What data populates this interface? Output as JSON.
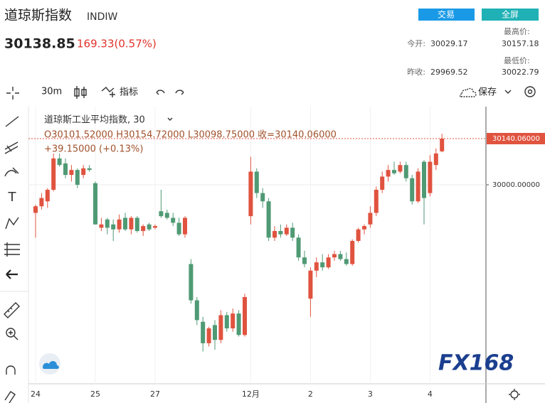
{
  "header": {
    "title": "道琼斯指数",
    "symbol": "INDIW",
    "price": "30138.85",
    "change": "169.33(0.57%)",
    "buttons": [
      "交易",
      "全屏"
    ],
    "stats": [
      {
        "label": "今开:",
        "value": "30029.17"
      },
      {
        "label": "最高价:",
        "value": "30157.18"
      },
      {
        "label": "昨收:",
        "value": "29969.52"
      },
      {
        "label": "最低价:",
        "value": "30022.79"
      }
    ]
  },
  "toolbar": {
    "interval": "30m",
    "indicators": "指标",
    "save": "保存"
  },
  "logo": "FX168",
  "chart_data": {
    "type": "candlestick",
    "legend_title": "道琼斯工业平均指数, 30",
    "ohlc_text": "O30101.52000  H30154.72000  L30098.75000  收=30140.06000",
    "change_text": "+39.15000 (+0.13%)",
    "categories": [
      "24",
      null,
      null,
      null,
      null,
      null,
      null,
      null,
      null,
      null,
      "25",
      null,
      null,
      null,
      null,
      null,
      null,
      null,
      null,
      null,
      "27",
      null,
      null,
      null,
      null,
      null,
      null,
      null,
      null,
      null,
      null,
      null,
      null,
      null,
      null,
      null,
      "12月",
      null,
      null,
      null,
      null,
      null,
      null,
      null,
      null,
      null,
      "2",
      null,
      null,
      null,
      null,
      null,
      null,
      null,
      null,
      null,
      "3",
      null,
      null,
      null,
      null,
      null,
      null,
      null,
      null,
      null,
      "4",
      null,
      null
    ],
    "open": [
      29915,
      29935,
      29950,
      29985,
      30080,
      30065,
      30030,
      30045,
      30030,
      30050,
      30005,
      29870,
      29895,
      29880,
      29865,
      29900,
      29865,
      29900,
      29860,
      29880,
      29870,
      29920,
      29915,
      29900,
      29885,
      29850,
      29760,
      29650,
      29585,
      29520,
      29575,
      29530,
      29605,
      29565,
      29610,
      29545,
      29905,
      30040,
      29975,
      29950,
      29840,
      29860,
      29850,
      29870,
      29840,
      29780,
      29655,
      29740,
      29765,
      29750,
      29780,
      29790,
      29775,
      29760,
      29830,
      29865,
      29880,
      29915,
      29985,
      30025,
      30045,
      30040,
      30060,
      30020,
      29950,
      30070,
      29975,
      30060,
      30101.52
    ],
    "high": [
      29940,
      29975,
      29990,
      30095,
      30095,
      30080,
      30060,
      30050,
      30060,
      30060,
      30010,
      29900,
      29900,
      29895,
      29910,
      29915,
      29905,
      29905,
      29880,
      29885,
      29880,
      29985,
      29925,
      29915,
      29900,
      29905,
      29775,
      29660,
      29600,
      29570,
      29590,
      29620,
      29615,
      29625,
      29620,
      29670,
      30085,
      30050,
      29990,
      29960,
      29875,
      29880,
      29880,
      29885,
      29850,
      29800,
      29750,
      29780,
      29790,
      29790,
      29800,
      29800,
      29795,
      29835,
      29870,
      29880,
      29935,
      29995,
      30040,
      30060,
      30070,
      30070,
      30070,
      30030,
      30050,
      30075,
      30090,
      30110,
      30154.72
    ],
    "low": [
      29840,
      29925,
      29930,
      29980,
      30055,
      30020,
      30010,
      29990,
      30020,
      30040,
      29880,
      29860,
      29850,
      29830,
      29855,
      29860,
      29850,
      29855,
      29845,
      29860,
      29865,
      29900,
      29895,
      29875,
      29845,
      29840,
      29640,
      29575,
      29495,
      29510,
      29500,
      29520,
      29555,
      29555,
      29540,
      29540,
      29880,
      29960,
      29930,
      29830,
      29830,
      29840,
      29845,
      29830,
      29770,
      29750,
      29600,
      29720,
      29740,
      29745,
      29770,
      29770,
      29755,
      29755,
      29825,
      29850,
      29870,
      29905,
      29975,
      30010,
      30030,
      30035,
      30010,
      29940,
      29945,
      29880,
      29965,
      30045,
      30098.75
    ],
    "close": [
      29935,
      29960,
      29985,
      30080,
      30060,
      30030,
      30045,
      30000,
      30050,
      30045,
      29880,
      29880,
      29870,
      29865,
      29895,
      29865,
      29900,
      29860,
      29875,
      29865,
      29875,
      29905,
      29900,
      29885,
      29850,
      29900,
      29650,
      29590,
      29520,
      29565,
      29530,
      29605,
      29565,
      29610,
      29545,
      29660,
      30040,
      29975,
      29950,
      29840,
      29860,
      29850,
      29870,
      29840,
      29780,
      29760,
      29740,
      29765,
      29750,
      29780,
      29790,
      29775,
      29760,
      29830,
      29865,
      29875,
      29915,
      29985,
      30025,
      30045,
      30035,
      30060,
      30020,
      29950,
      30040,
      29960,
      30070,
      30095,
      30140.06
    ],
    "up_color": "#e0533f",
    "down_color": "#4f9a74",
    "ylim": [
      29397,
      30237
    ],
    "yticks": [
      {
        "value": 30000,
        "label": "30000.00000"
      }
    ],
    "last_price": {
      "value": 30140.06,
      "label": "30140.06000"
    },
    "grid": true
  }
}
